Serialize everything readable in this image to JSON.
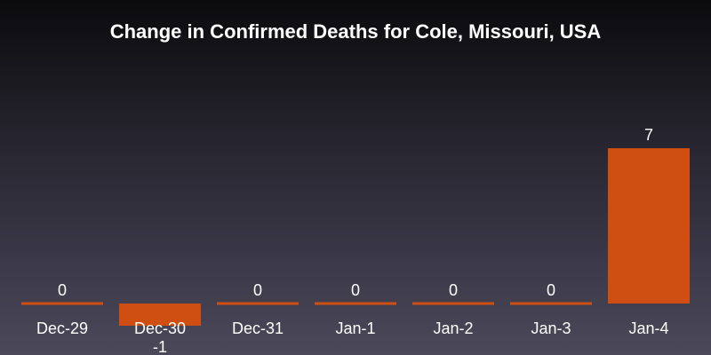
{
  "chart_data": {
    "type": "bar",
    "title": "Change in Confirmed Deaths for Cole, Missouri, USA",
    "categories": [
      "Dec-29",
      "Dec-30",
      "Dec-31",
      "Jan-1",
      "Jan-2",
      "Jan-3",
      "Jan-4"
    ],
    "values": [
      0,
      -1,
      0,
      0,
      0,
      0,
      7
    ],
    "xlabel": "",
    "ylabel": "",
    "grid": false,
    "colors": {
      "bar": "#cf4f12",
      "text": "#ffffff"
    }
  }
}
